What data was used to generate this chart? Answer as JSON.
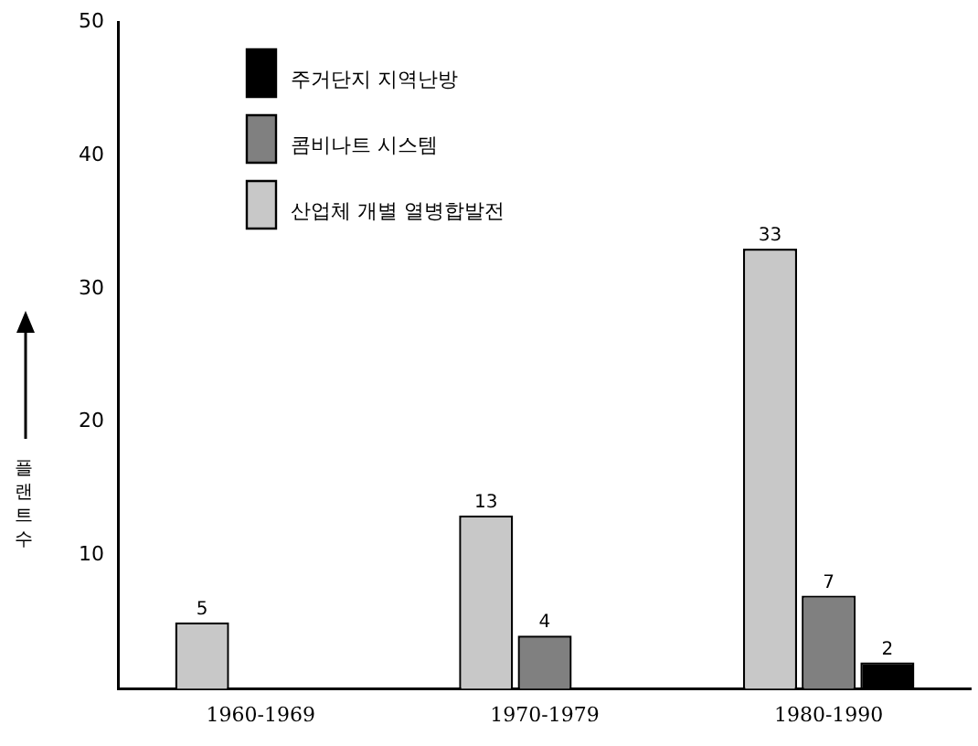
{
  "chart_data": {
    "type": "bar",
    "ylabel": "플랜트 수",
    "categories": [
      "1960-1969",
      "1970-1979",
      "1980-1990"
    ],
    "series": [
      {
        "name": "산업체 개별 열병합발전",
        "color": "#c8c8c8",
        "values": [
          5,
          13,
          33
        ]
      },
      {
        "name": "콤비나트 시스템",
        "color": "#808080",
        "values": [
          null,
          4,
          7
        ]
      },
      {
        "name": "주거단지 지역난방",
        "color": "#000000",
        "values": [
          null,
          null,
          2
        ]
      }
    ],
    "ylim": [
      0,
      50
    ],
    "yticks": [
      10,
      20,
      30,
      40,
      50
    ],
    "grid": false,
    "legend": "top left",
    "data_labels": true
  }
}
